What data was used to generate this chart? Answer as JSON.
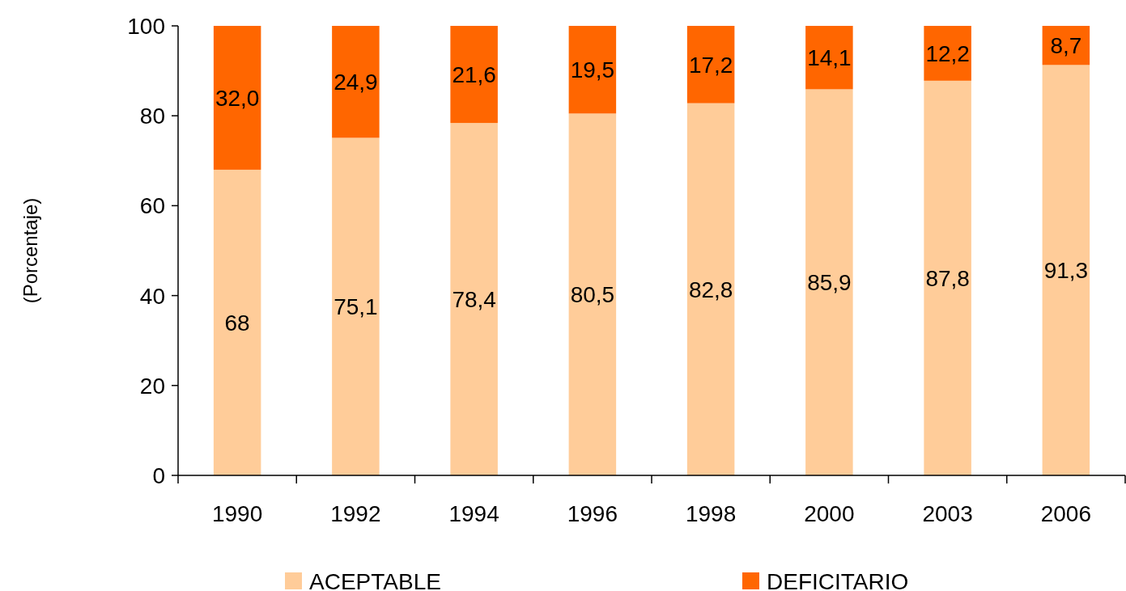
{
  "chart_data": {
    "type": "bar",
    "stacked": true,
    "ylabel": "(Porcentaje)",
    "categories": [
      "1990",
      "1992",
      "1994",
      "1996",
      "1998",
      "2000",
      "2003",
      "2006"
    ],
    "series": [
      {
        "name": "ACEPTABLE",
        "color": "#ffcc99",
        "values": [
          68,
          75.1,
          78.4,
          80.5,
          82.8,
          85.9,
          87.8,
          91.3
        ],
        "value_labels": [
          "68",
          "75,1",
          "78,4",
          "80,5",
          "82,8",
          "85,9",
          "87,8",
          "91,3"
        ]
      },
      {
        "name": "DEFICITARIO",
        "color": "#ff6600",
        "values": [
          32.0,
          24.9,
          21.6,
          19.5,
          17.2,
          14.1,
          12.2,
          8.7
        ],
        "value_labels": [
          "32,0",
          "24,9",
          "21,6",
          "19,5",
          "17,2",
          "14,1",
          "12,2",
          "8,7"
        ]
      }
    ],
    "ylim": [
      0,
      100
    ],
    "yticks": [
      0,
      20,
      40,
      60,
      80,
      100
    ],
    "legend": "bottom",
    "grid": false
  }
}
